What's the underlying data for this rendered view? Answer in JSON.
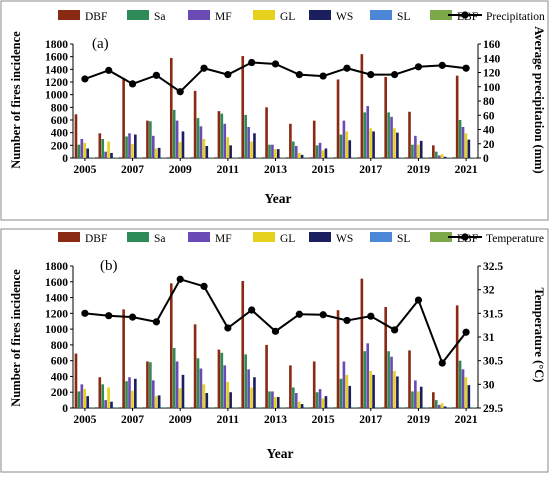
{
  "series_styles": [
    {
      "key": "DBF",
      "color": "#8B2A13"
    },
    {
      "key": "Sa",
      "color": "#2E8B57"
    },
    {
      "key": "MF",
      "color": "#6A4BB5"
    },
    {
      "key": "GL",
      "color": "#E6D21C"
    },
    {
      "key": "WS",
      "color": "#1B1F5E"
    },
    {
      "key": "SL",
      "color": "#4C86D6"
    },
    {
      "key": "EBF",
      "color": "#7CA84A"
    }
  ],
  "chart_data": [
    {
      "type": "bar",
      "panel_label": "(a)",
      "xlabel": "Year",
      "ylabel": "Number of fires incidence",
      "y2label": "Average precipitation (mm)",
      "ylim": [
        0,
        1800
      ],
      "yticks": [
        0,
        200,
        400,
        600,
        800,
        1000,
        1200,
        1400,
        1600,
        1800
      ],
      "y2lim": [
        0,
        160
      ],
      "y2ticks": [
        0,
        20,
        40,
        60,
        80,
        100,
        120,
        140,
        160
      ],
      "categories": [
        2005,
        2006,
        2007,
        2008,
        2009,
        2010,
        2011,
        2012,
        2013,
        2014,
        2015,
        2016,
        2017,
        2018,
        2019,
        2020,
        2021
      ],
      "xtick_labels": [
        "2005",
        "2007",
        "2009",
        "2011",
        "2013",
        "2015",
        "2017",
        "2019",
        "2021"
      ],
      "xtick_years": [
        2005,
        2007,
        2009,
        2011,
        2013,
        2015,
        2017,
        2019,
        2021
      ],
      "legend_position": "top",
      "series": [
        {
          "name": "DBF",
          "values": [
            690,
            390,
            1250,
            590,
            1580,
            1060,
            740,
            1610,
            800,
            540,
            590,
            1240,
            1640,
            1280,
            730,
            200,
            1300
          ]
        },
        {
          "name": "Sa",
          "values": [
            210,
            300,
            340,
            580,
            760,
            630,
            700,
            680,
            210,
            260,
            200,
            370,
            720,
            720,
            210,
            100,
            600
          ]
        },
        {
          "name": "MF",
          "values": [
            300,
            100,
            390,
            350,
            590,
            500,
            540,
            490,
            210,
            190,
            240,
            590,
            820,
            650,
            350,
            40,
            490
          ]
        },
        {
          "name": "GL",
          "values": [
            240,
            260,
            220,
            150,
            250,
            300,
            330,
            260,
            140,
            80,
            120,
            420,
            470,
            470,
            210,
            60,
            390
          ]
        },
        {
          "name": "WS",
          "values": [
            150,
            80,
            370,
            160,
            420,
            190,
            200,
            390,
            140,
            50,
            150,
            280,
            420,
            400,
            270,
            20,
            290
          ]
        },
        {
          "name": "SL",
          "values": [
            10,
            10,
            10,
            10,
            10,
            10,
            10,
            10,
            10,
            10,
            10,
            10,
            10,
            10,
            10,
            10,
            10
          ]
        },
        {
          "name": "EBF",
          "values": [
            10,
            10,
            10,
            10,
            10,
            10,
            10,
            10,
            10,
            10,
            10,
            10,
            10,
            10,
            10,
            10,
            10
          ]
        }
      ],
      "line": {
        "name": "Precipitation",
        "values": [
          111,
          123,
          104,
          116,
          93,
          126,
          117,
          134,
          132,
          117,
          115,
          126,
          117,
          117,
          128,
          130,
          126
        ]
      }
    },
    {
      "type": "bar",
      "panel_label": "(b)",
      "xlabel": "Year",
      "ylabel": "Number of fires incidence",
      "y2label": "Temperature (°C)",
      "ylim": [
        0,
        1800
      ],
      "yticks": [
        0,
        200,
        400,
        600,
        800,
        1000,
        1200,
        1400,
        1600,
        1800
      ],
      "y2lim": [
        29.5,
        32.5
      ],
      "y2ticks": [
        29.5,
        30,
        30.5,
        31,
        31.5,
        32,
        32.5
      ],
      "categories": [
        2005,
        2006,
        2007,
        2008,
        2009,
        2010,
        2011,
        2012,
        2013,
        2014,
        2015,
        2016,
        2017,
        2018,
        2019,
        2020,
        2021
      ],
      "xtick_labels": [
        "2005",
        "2007",
        "2009",
        "2011",
        "2013",
        "2015",
        "2017",
        "2019",
        "2021"
      ],
      "xtick_years": [
        2005,
        2007,
        2009,
        2011,
        2013,
        2015,
        2017,
        2019,
        2021
      ],
      "legend_position": "top",
      "series": [
        {
          "name": "DBF",
          "values": [
            690,
            390,
            1250,
            590,
            1580,
            1060,
            740,
            1610,
            800,
            540,
            590,
            1240,
            1640,
            1280,
            730,
            200,
            1300
          ]
        },
        {
          "name": "Sa",
          "values": [
            210,
            300,
            340,
            580,
            760,
            630,
            700,
            680,
            210,
            260,
            200,
            370,
            720,
            720,
            210,
            100,
            600
          ]
        },
        {
          "name": "MF",
          "values": [
            300,
            100,
            390,
            350,
            590,
            500,
            540,
            490,
            210,
            190,
            240,
            590,
            820,
            650,
            350,
            40,
            490
          ]
        },
        {
          "name": "GL",
          "values": [
            240,
            260,
            220,
            150,
            250,
            300,
            330,
            260,
            140,
            80,
            120,
            420,
            470,
            470,
            210,
            60,
            390
          ]
        },
        {
          "name": "WS",
          "values": [
            150,
            80,
            370,
            160,
            420,
            190,
            200,
            390,
            140,
            50,
            150,
            280,
            420,
            400,
            270,
            20,
            290
          ]
        },
        {
          "name": "SL",
          "values": [
            10,
            10,
            10,
            10,
            10,
            10,
            10,
            10,
            10,
            10,
            10,
            10,
            10,
            10,
            10,
            10,
            10
          ]
        },
        {
          "name": "EBF",
          "values": [
            10,
            10,
            10,
            10,
            10,
            10,
            10,
            10,
            10,
            10,
            10,
            10,
            10,
            10,
            10,
            10,
            10
          ]
        }
      ],
      "line": {
        "name": "Temperature",
        "values": [
          31.5,
          31.45,
          31.42,
          31.32,
          32.22,
          32.07,
          31.19,
          31.57,
          31.12,
          31.48,
          31.47,
          31.35,
          31.44,
          31.15,
          31.78,
          30.45,
          31.1
        ]
      }
    }
  ]
}
